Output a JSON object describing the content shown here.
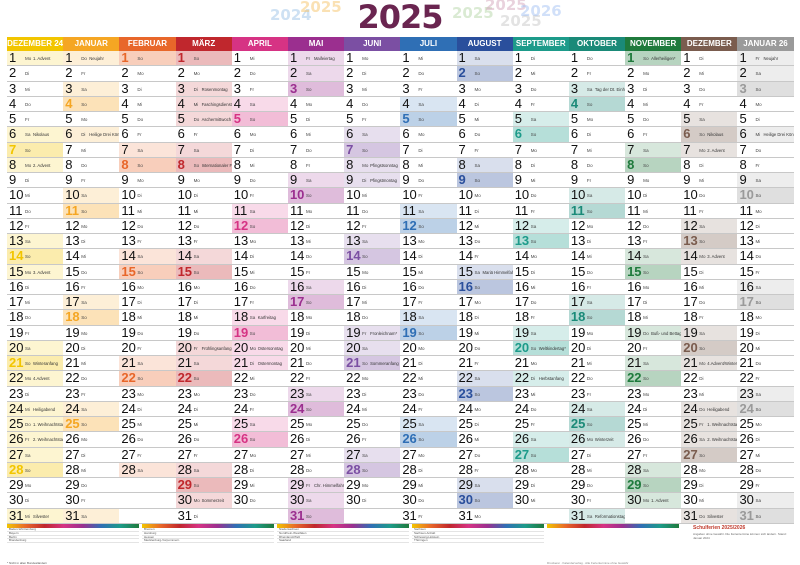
{
  "title": "2025",
  "year_watermarks": [
    "2024",
    "2025",
    "2025",
    "2025",
    "2025",
    "2026"
  ],
  "months": [
    {
      "name": "Dezember 24",
      "color": "#f2c500",
      "start": 0,
      "days": 31,
      "ev": {
        "1": "1. Advent",
        "6": "Nikolaus",
        "8": "2. Advent",
        "15": "3. Advent",
        "21": "Winteranfang",
        "22": "4.Advent",
        "24": "Heiligabend",
        "25": "1. Weihnachtstag",
        "26": "2. Weihnachtstag",
        "31": "Silvester"
      }
    },
    {
      "name": "Januar",
      "color": "#f5a623",
      "start": 3,
      "days": 31,
      "ev": {
        "1": "Neujahr",
        "6": "Heilige Drei Könige*"
      }
    },
    {
      "name": "Februar",
      "color": "#e8672a",
      "start": 6,
      "days": 28,
      "ev": {}
    },
    {
      "name": "März",
      "color": "#c0272d",
      "start": 6,
      "days": 31,
      "ev": {
        "3": "Rosenmontag",
        "4": "Faschingsdienstag",
        "5": "Aschermittwoch",
        "8": "Internationaler Frauentag*",
        "20": "Frühlingsanfang",
        "30": "Sommerzeit"
      }
    },
    {
      "name": "April",
      "color": "#d63384",
      "start": 2,
      "days": 30,
      "ev": {
        "18": "Karfreitag",
        "20": "Ostersonntag",
        "21": "Ostermontag"
      }
    },
    {
      "name": "Mai",
      "color": "#9b2f8f",
      "start": 4,
      "days": 31,
      "ev": {
        "1": "Maifeiertag",
        "29": "Chr. Himmelfahrt"
      }
    },
    {
      "name": "Juni",
      "color": "#7b4fa3",
      "start": 0,
      "days": 30,
      "ev": {
        "8": "Pfingstsonntag",
        "9": "Pfingstmontag",
        "19": "Fronleichnam*",
        "21": "Sommeranfang"
      }
    },
    {
      "name": "Juli",
      "color": "#2f6fb5",
      "start": 2,
      "days": 31,
      "ev": {}
    },
    {
      "name": "August",
      "color": "#2a4f9c",
      "start": 5,
      "days": 31,
      "ev": {
        "15": "Mariä Himmelfahrt*"
      }
    },
    {
      "name": "September",
      "color": "#1d9b8a",
      "start": 1,
      "days": 30,
      "ev": {
        "20": "Weltkindertag*",
        "22": "Herbstanfang"
      }
    },
    {
      "name": "Oktober",
      "color": "#1a8a78",
      "start": 3,
      "days": 31,
      "ev": {
        "3": "Tag der Dt. Einheit",
        "26": "Winterzeit",
        "31": "Reformationstag*"
      }
    },
    {
      "name": "November",
      "color": "#1f7a3c",
      "start": 6,
      "days": 30,
      "ev": {
        "1": "Allerheiligen*",
        "19": "Buß- und Bettag*",
        "30": "1. Advent"
      }
    },
    {
      "name": "Dezember",
      "color": "#7a5c4e",
      "start": 1,
      "days": 31,
      "ev": {
        "6": "Nikolaus",
        "7": "2. Advent",
        "14": "3. Advent",
        "21": "4.Advent/Winteranfang",
        "24": "Heiligabend",
        "25": "1. Weihnachtstag",
        "26": "2. Weihnachtstag",
        "31": "Silvester"
      }
    },
    {
      "name": "Januar 26",
      "color": "#9a9a9a",
      "start": 4,
      "days": 31,
      "ev": {
        "1": "Neujahr",
        "6": "Heilige Drei Könige*"
      }
    }
  ],
  "weekdays": [
    "Mo",
    "Di",
    "Mi",
    "Do",
    "Fr",
    "Sa",
    "So"
  ],
  "footer": {
    "school_title": "Schulferien 2025/2026",
    "school_note": "Angaben ohne Gewähr. Die Ferientermine können sich ändern. Stand: Januar 2024",
    "note": "* Nicht in allen Bundesländern",
    "imprint": "Druckerei · Kalenderverlag · Alle Ferientermine ohne Gewähr",
    "states": [
      "Baden-Württemberg",
      "Bayern",
      "Berlin",
      "Brandenburg",
      "Bremen",
      "Hamburg",
      "Hessen",
      "Mecklenburg-Vorpommern",
      "Niedersachsen",
      "Nordrhein-Westfalen",
      "Rheinland-Pfalz",
      "Saarland",
      "Sachsen",
      "Sachsen-Anhalt",
      "Schleswig-Holstein",
      "Thüringen"
    ]
  }
}
